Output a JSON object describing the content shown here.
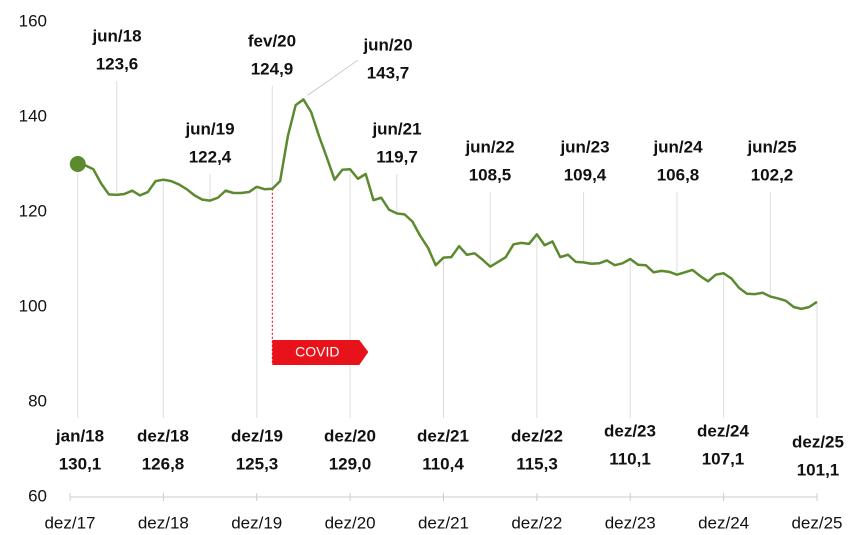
{
  "chart_data": {
    "type": "line",
    "categories": [
      "dez/17",
      null,
      null,
      null,
      null,
      null,
      null,
      null,
      null,
      null,
      null,
      null,
      "dez/18",
      null,
      null,
      null,
      null,
      null,
      null,
      null,
      null,
      null,
      null,
      null,
      "dez/19",
      null,
      null,
      null,
      null,
      null,
      null,
      null,
      null,
      null,
      null,
      null,
      "dez/20",
      null,
      null,
      null,
      null,
      null,
      null,
      null,
      null,
      null,
      null,
      null,
      "dez/21",
      null,
      null,
      null,
      null,
      null,
      null,
      null,
      null,
      null,
      null,
      null,
      "dez/22",
      null,
      null,
      null,
      null,
      null,
      null,
      null,
      null,
      null,
      null,
      null,
      "dez/23",
      null,
      null,
      null,
      null,
      null,
      null,
      null,
      null,
      null,
      null,
      null,
      "dez/24",
      null,
      null,
      null,
      null,
      null,
      null,
      null,
      null,
      null,
      null,
      null,
      "dez/25"
    ],
    "series": [
      {
        "color": "#5b8a2f",
        "values": [
          null,
          130.1,
          129.8,
          129.0,
          126.0,
          123.7,
          123.6,
          123.8,
          124.5,
          123.5,
          124.2,
          126.5,
          126.8,
          126.5,
          125.8,
          124.8,
          123.5,
          122.6,
          122.4,
          123.0,
          124.5,
          124.0,
          124.0,
          124.2,
          125.3,
          124.8,
          124.9,
          126.5,
          136.0,
          142.5,
          143.7,
          141.0,
          136.0,
          131.5,
          126.8,
          128.9,
          129.0,
          127.0,
          128.0,
          122.5,
          123.0,
          120.5,
          119.7,
          119.5,
          118.0,
          115.0,
          112.5,
          108.8,
          110.4,
          110.5,
          112.8,
          111.0,
          111.3,
          110.0,
          108.5,
          109.5,
          110.5,
          113.2,
          113.5,
          113.3,
          115.3,
          113.0,
          113.8,
          110.5,
          111.0,
          109.5,
          109.4,
          109.1,
          109.2,
          109.8,
          108.8,
          109.2,
          110.1,
          108.9,
          108.8,
          107.3,
          107.6,
          107.4,
          106.8,
          107.3,
          107.8,
          106.5,
          105.4,
          106.8,
          107.1,
          106.0,
          104.0,
          102.8,
          102.7,
          103.0,
          102.2,
          101.8,
          101.3,
          100.0,
          99.6,
          100.0,
          101.1
        ],
        "point_labels": [
          null,
          "jan/18",
          null,
          null,
          null,
          null,
          "jun/18",
          null,
          null,
          null,
          null,
          null,
          "dez/18",
          null,
          null,
          null,
          null,
          null,
          "jun/19",
          null,
          null,
          null,
          null,
          null,
          "dez/19",
          null,
          "fev/20",
          null,
          null,
          null,
          "jun/20",
          null,
          null,
          null,
          null,
          null,
          "dez/20",
          null,
          null,
          null,
          null,
          null,
          "jun/21",
          null,
          null,
          null,
          null,
          null,
          "dez/21",
          null,
          null,
          null,
          null,
          null,
          "jun/22",
          null,
          null,
          null,
          null,
          null,
          "dez/22",
          null,
          null,
          null,
          null,
          null,
          "jun/23",
          null,
          null,
          null,
          null,
          null,
          "dez/23",
          null,
          null,
          null,
          null,
          null,
          "jun/24",
          null,
          null,
          null,
          null,
          null,
          "dez/24",
          null,
          null,
          null,
          null,
          null,
          "jun/25",
          null,
          null,
          null,
          null,
          null,
          "dez/25"
        ],
        "value_labels": [
          null,
          "130,1",
          null,
          null,
          null,
          null,
          "123,6",
          null,
          null,
          null,
          null,
          null,
          "126,8",
          null,
          null,
          null,
          null,
          null,
          "122,4",
          null,
          null,
          null,
          null,
          null,
          "125,3",
          null,
          "124,9",
          null,
          null,
          null,
          "143,7",
          null,
          null,
          null,
          null,
          null,
          "129,0",
          null,
          null,
          null,
          null,
          null,
          "119,7",
          null,
          null,
          null,
          null,
          null,
          "110,4",
          null,
          null,
          null,
          null,
          null,
          "108,5",
          null,
          null,
          null,
          null,
          null,
          "115,3",
          null,
          null,
          null,
          null,
          null,
          "109,4",
          null,
          null,
          null,
          null,
          null,
          "110,1",
          null,
          null,
          null,
          null,
          null,
          "106,8",
          null,
          null,
          null,
          null,
          null,
          "107,1",
          null,
          null,
          null,
          null,
          null,
          "102,2",
          null,
          null,
          null,
          null,
          null,
          "101,1"
        ]
      }
    ],
    "ylim": [
      60,
      160
    ],
    "yticks": [
      60,
      80,
      100,
      120,
      140,
      160
    ],
    "covid_label": "COVID"
  }
}
